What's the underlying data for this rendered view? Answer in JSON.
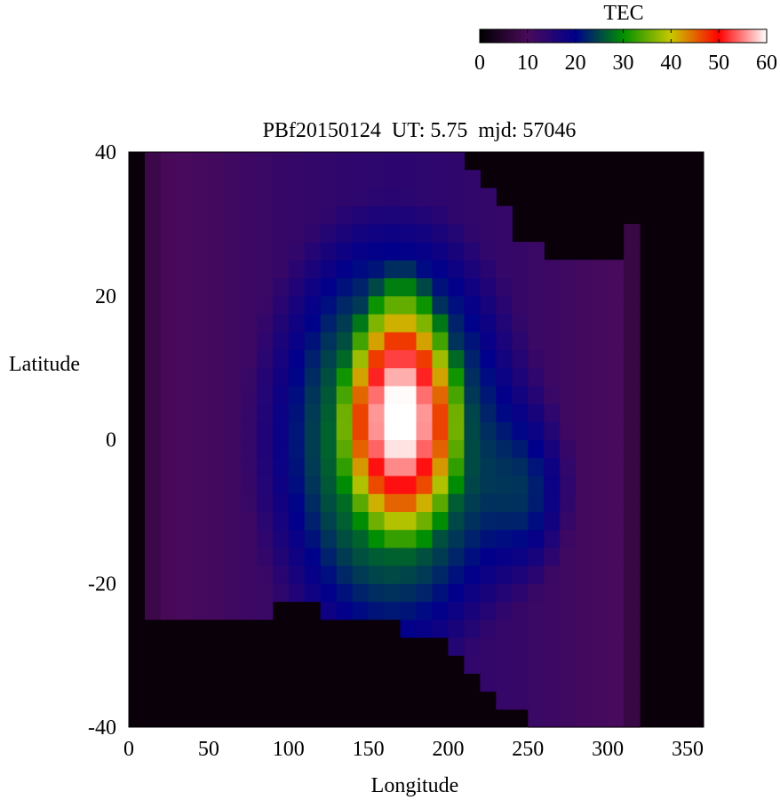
{
  "chart_data": {
    "type": "heatmap",
    "title": "PBf20150124  UT: 5.75  mjd: 57046",
    "xlabel": "Longitude",
    "ylabel": "Latitude",
    "xlim": [
      0,
      360
    ],
    "ylim": [
      -40,
      40
    ],
    "x_ticks": [
      "0",
      "50",
      "100",
      "150",
      "200",
      "250",
      "300",
      "350"
    ],
    "y_ticks": [
      "40",
      "20",
      "0",
      "-20",
      "-40"
    ],
    "x_tick_values": [
      0,
      50,
      100,
      150,
      200,
      250,
      300,
      350
    ],
    "y_tick_values": [
      40,
      20,
      0,
      -20,
      -40
    ],
    "colorbar": {
      "label": "TEC",
      "range": [
        0,
        60
      ],
      "ticks": [
        "0",
        "10",
        "20",
        "30",
        "40",
        "50",
        "60"
      ],
      "tick_values": [
        0,
        10,
        20,
        30,
        40,
        50,
        60
      ],
      "colormap_stops": [
        {
          "value": 0,
          "color": "#000000"
        },
        {
          "value": 10,
          "color": "#4a0a5a"
        },
        {
          "value": 20,
          "color": "#00008c"
        },
        {
          "value": 30,
          "color": "#009000"
        },
        {
          "value": 40,
          "color": "#c8c800"
        },
        {
          "value": 50,
          "color": "#ff0000"
        },
        {
          "value": 60,
          "color": "#ffffff"
        }
      ]
    },
    "grid": {
      "lon_step": 10,
      "lat_step": 2.5
    },
    "no_data_value": 0,
    "field_description": {
      "peak_tec": 60,
      "peak_lon_range": [
        145,
        200
      ],
      "peak_lat_range": [
        -15,
        20
      ],
      "south_boundary_lat_by_lon": [
        [
          0,
          -25
        ],
        [
          30,
          -25
        ],
        [
          50,
          -26
        ],
        [
          70,
          -25
        ],
        [
          90,
          -23.5
        ],
        [
          110,
          -23.5
        ],
        [
          130,
          -24
        ],
        [
          160,
          -25.5
        ],
        [
          180,
          -27
        ],
        [
          200,
          -29
        ],
        [
          220,
          -33
        ],
        [
          240,
          -38
        ],
        [
          260,
          -40
        ],
        [
          300,
          -40
        ],
        [
          320,
          -40
        ]
      ],
      "north_boundary_lat_by_lon": [
        [
          0,
          40
        ],
        [
          50,
          40
        ],
        [
          200,
          40
        ],
        [
          210,
          38
        ],
        [
          230,
          33
        ],
        [
          250,
          27
        ],
        [
          270,
          24.5
        ],
        [
          300,
          25
        ],
        [
          310,
          27
        ],
        [
          330,
          40
        ]
      ],
      "nodata_lon_ranges": [
        [
          0,
          10
        ],
        [
          320,
          360
        ]
      ]
    }
  }
}
